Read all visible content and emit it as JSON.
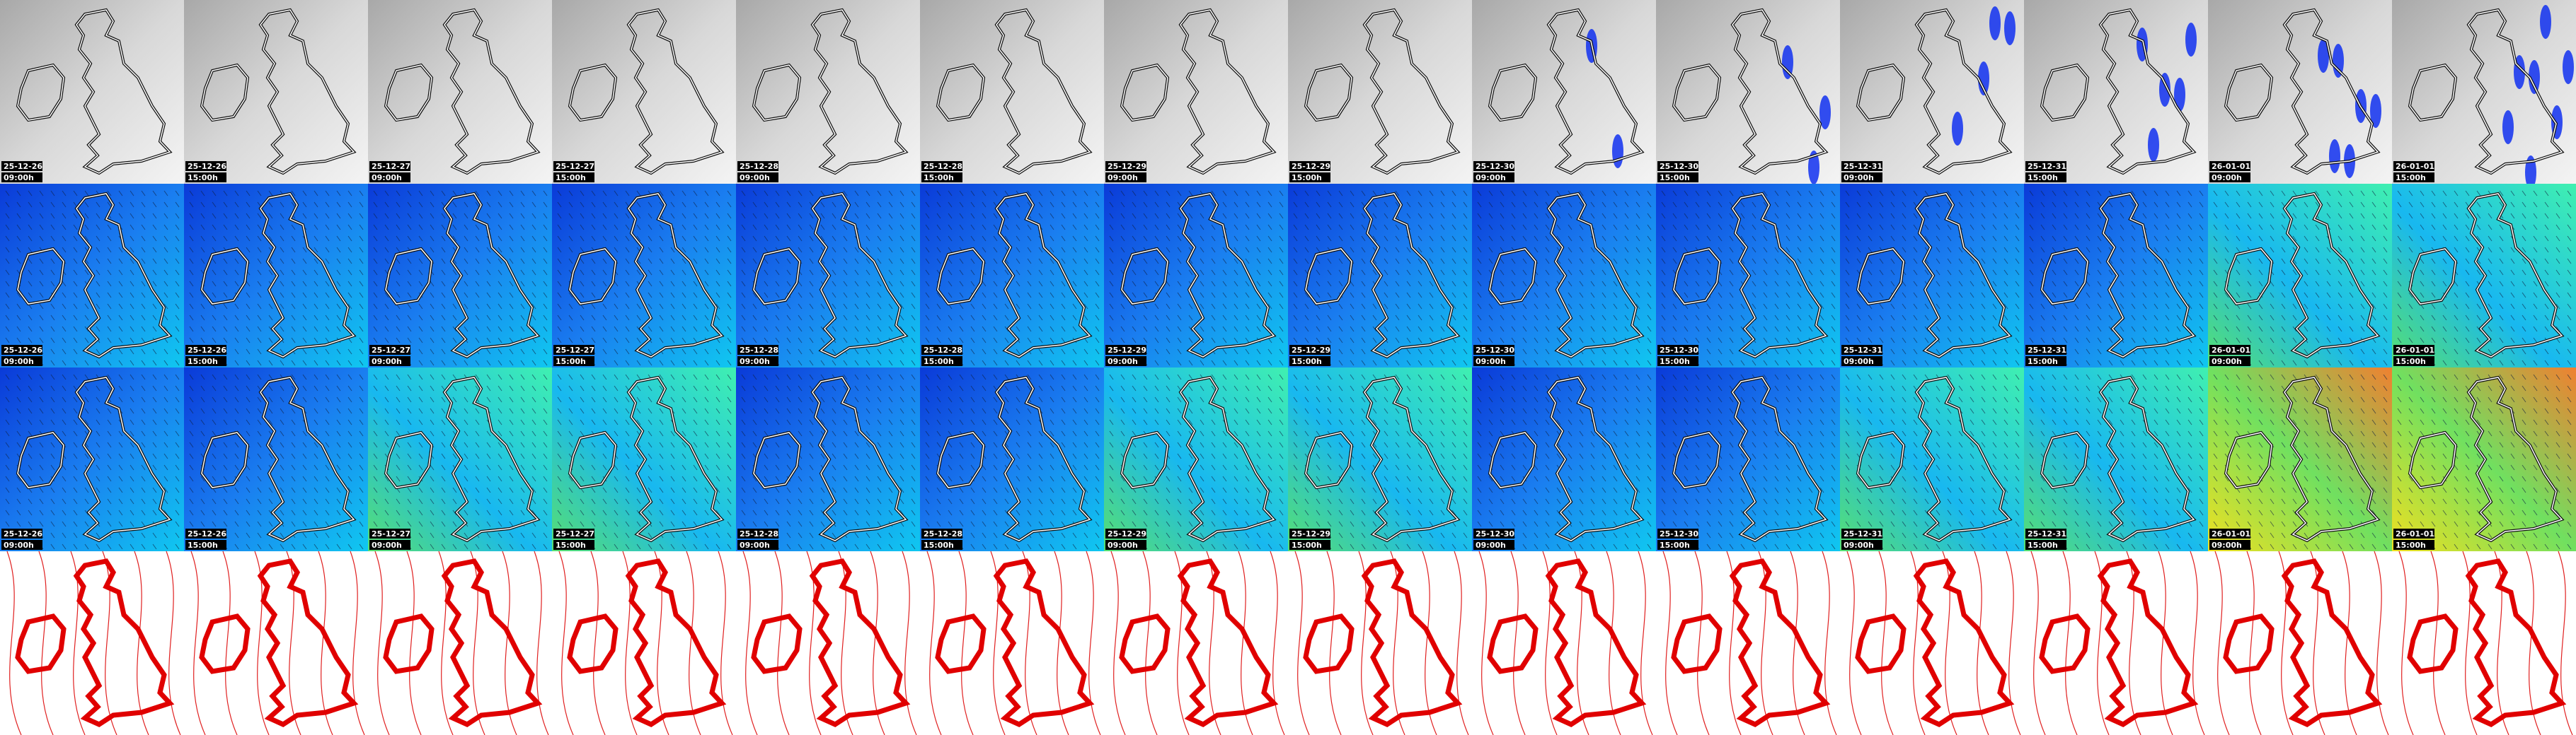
{
  "columns": [
    {
      "date": "25-12-26",
      "time": "09:00h"
    },
    {
      "date": "25-12-26",
      "time": "15:00h"
    },
    {
      "date": "25-12-27",
      "time": "09:00h"
    },
    {
      "date": "25-12-27",
      "time": "15:00h"
    },
    {
      "date": "25-12-28",
      "time": "09:00h"
    },
    {
      "date": "25-12-28",
      "time": "15:00h"
    },
    {
      "date": "25-12-29",
      "time": "09:00h"
    },
    {
      "date": "25-12-29",
      "time": "15:00h"
    },
    {
      "date": "25-12-30",
      "time": "09:00h"
    },
    {
      "date": "25-12-30",
      "time": "15:00h"
    },
    {
      "date": "25-12-31",
      "time": "09:00h"
    },
    {
      "date": "25-12-31",
      "time": "15:00h"
    },
    {
      "date": "26-01-01",
      "time": "09:00h"
    },
    {
      "date": "26-01-01",
      "time": "15:00h"
    }
  ]
}
